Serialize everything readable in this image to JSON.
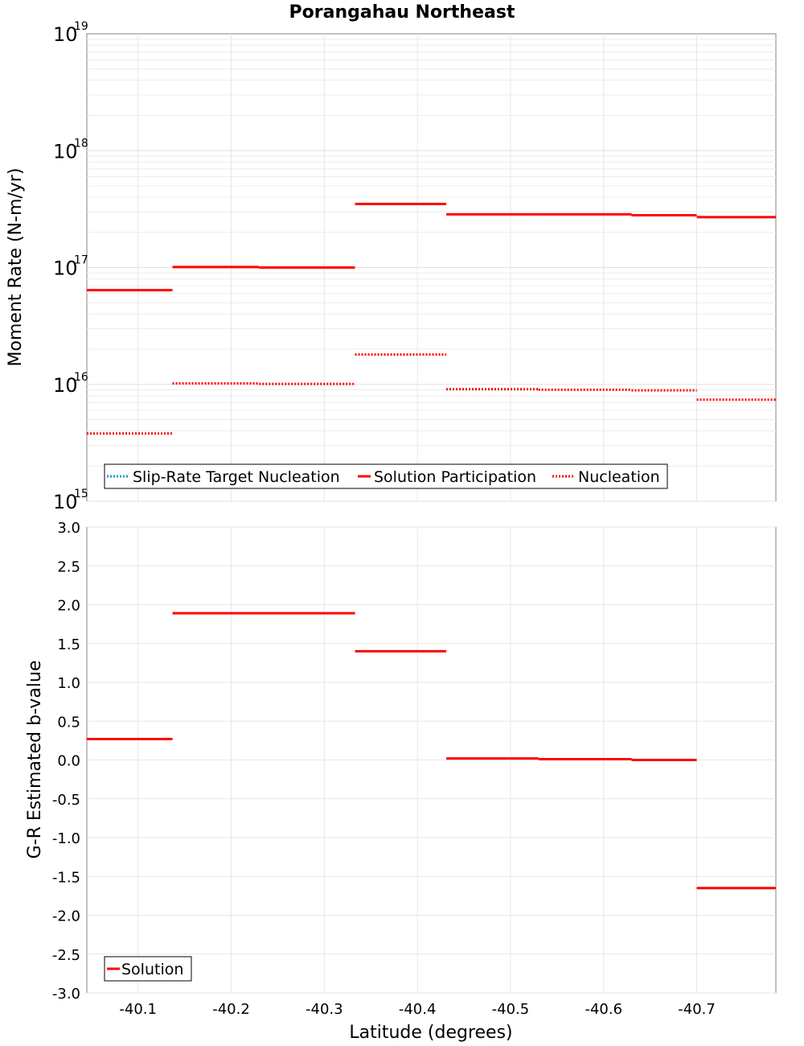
{
  "title": "Porangahau Northeast",
  "chart_data": [
    {
      "type": "line",
      "ylabel": "Moment Rate (N-m/yr)",
      "yscale": "log",
      "ylim": [
        1000000000000000.0,
        1e+19
      ],
      "xlim": [
        -40.045,
        -40.785
      ],
      "x_reversed": true,
      "y_ticks": [
        {
          "base": "10",
          "exp": "15",
          "value": 1000000000000000.0
        },
        {
          "base": "10",
          "exp": "16",
          "value": 1e+16
        },
        {
          "base": "10",
          "exp": "17",
          "value": 1e+17
        },
        {
          "base": "10",
          "exp": "18",
          "value": 1e+18
        },
        {
          "base": "10",
          "exp": "19",
          "value": 1e+19
        }
      ],
      "grid": true,
      "legend_position": "bottom-left",
      "legend": [
        "Slip-Rate Target Nucleation",
        "Solution Participation",
        "Nucleation"
      ],
      "series": [
        {
          "name": "Slip-Rate Target Nucleation",
          "style": "dotted",
          "color": "#00a0c0",
          "segments": []
        },
        {
          "name": "Solution Participation",
          "style": "solid",
          "color": "#ff0000",
          "segments": [
            {
              "x0": -40.045,
              "x1": -40.137,
              "y": 6.4e+16
            },
            {
              "x0": -40.137,
              "x1": -40.23,
              "y": 1.01e+17
            },
            {
              "x0": -40.23,
              "x1": -40.333,
              "y": 1e+17
            },
            {
              "x0": -40.333,
              "x1": -40.431,
              "y": 3.5e+17
            },
            {
              "x0": -40.431,
              "x1": -40.53,
              "y": 2.85e+17
            },
            {
              "x0": -40.53,
              "x1": -40.63,
              "y": 2.85e+17
            },
            {
              "x0": -40.63,
              "x1": -40.7,
              "y": 2.8e+17
            },
            {
              "x0": -40.7,
              "x1": -40.785,
              "y": 2.7e+17
            }
          ]
        },
        {
          "name": "Nucleation",
          "style": "dotted",
          "color": "#ff0000",
          "segments": [
            {
              "x0": -40.045,
              "x1": -40.137,
              "y": 3800000000000000.0
            },
            {
              "x0": -40.137,
              "x1": -40.23,
              "y": 1.02e+16
            },
            {
              "x0": -40.23,
              "x1": -40.333,
              "y": 1.01e+16
            },
            {
              "x0": -40.333,
              "x1": -40.431,
              "y": 1.8e+16
            },
            {
              "x0": -40.431,
              "x1": -40.53,
              "y": 9100000000000000.0
            },
            {
              "x0": -40.53,
              "x1": -40.63,
              "y": 9000000000000000.0
            },
            {
              "x0": -40.63,
              "x1": -40.7,
              "y": 8900000000000000.0
            },
            {
              "x0": -40.7,
              "x1": -40.785,
              "y": 7400000000000000.0
            }
          ]
        }
      ]
    },
    {
      "type": "line",
      "ylabel": "G-R Estimated b-value",
      "xlabel": "Latitude (degrees)",
      "ylim": [
        -3.0,
        3.0
      ],
      "xlim": [
        -40.045,
        -40.785
      ],
      "x_reversed": true,
      "x_ticks": [
        "-40.1",
        "-40.2",
        "-40.3",
        "-40.4",
        "-40.5",
        "-40.6",
        "-40.7"
      ],
      "x_tick_values": [
        -40.1,
        -40.2,
        -40.3,
        -40.4,
        -40.5,
        -40.6,
        -40.7
      ],
      "y_ticks": [
        "3.0",
        "2.5",
        "2.0",
        "1.5",
        "1.0",
        "0.5",
        "0.0",
        "-0.5",
        "-1.0",
        "-1.5",
        "-2.0",
        "-2.5",
        "-3.0"
      ],
      "y_tick_values": [
        3.0,
        2.5,
        2.0,
        1.5,
        1.0,
        0.5,
        0.0,
        -0.5,
        -1.0,
        -1.5,
        -2.0,
        -2.5,
        -3.0
      ],
      "grid": true,
      "legend_position": "bottom-left",
      "legend": [
        "Solution"
      ],
      "series": [
        {
          "name": "Solution",
          "style": "solid",
          "color": "#ff0000",
          "segments": [
            {
              "x0": -40.045,
              "x1": -40.137,
              "y": 0.27
            },
            {
              "x0": -40.137,
              "x1": -40.333,
              "y": 1.89
            },
            {
              "x0": -40.333,
              "x1": -40.431,
              "y": 1.4
            },
            {
              "x0": -40.431,
              "x1": -40.53,
              "y": 0.02
            },
            {
              "x0": -40.53,
              "x1": -40.63,
              "y": 0.01
            },
            {
              "x0": -40.63,
              "x1": -40.7,
              "y": 0.0
            },
            {
              "x0": -40.7,
              "x1": -40.785,
              "y": -1.65
            }
          ]
        }
      ]
    }
  ]
}
